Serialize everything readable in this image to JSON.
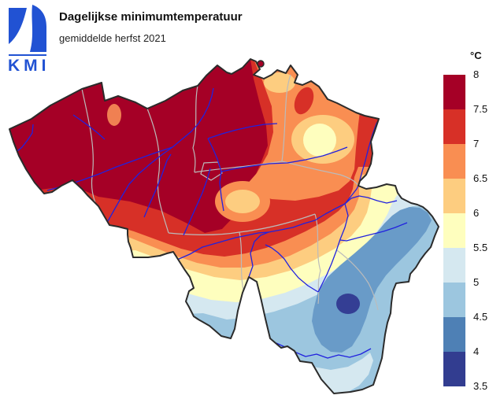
{
  "header": {
    "title": "Dagelijkse minimumtemperatuur",
    "subtitle": "gemiddelde herfst 2021",
    "logo_text": "KMI",
    "logo_color": "#2152D3"
  },
  "legend": {
    "unit_label": "°C",
    "tick_labels": [
      "8",
      "7.5",
      "7",
      "6.5",
      "6",
      "5.5",
      "5",
      "4.5",
      "4",
      "3.5"
    ],
    "stops": [
      "#A50026",
      "#D73027",
      "#F98E52",
      "#FDCD80",
      "#FEFEBE",
      "#D5E8F0",
      "#9CC6DF",
      "#4E80B5",
      "#323D90"
    ]
  },
  "chart_data": {
    "type": "heatmap",
    "title": "Dagelijkse minimumtemperatuur",
    "subtitle": "gemiddelde herfst 2021",
    "region": "Belgium",
    "unit": "°C",
    "scale_min": 3.5,
    "scale_max": 8,
    "scale_interval": 0.5,
    "bands": [
      {
        "range": "7.5–8",
        "color": "#A50026"
      },
      {
        "range": "7–7.5",
        "color": "#D73027"
      },
      {
        "range": "6.5–7",
        "color": "#F98E52"
      },
      {
        "range": "6–6.5",
        "color": "#FDCD80"
      },
      {
        "range": "5.5–6",
        "color": "#FEFEBE"
      },
      {
        "range": "5–5.5",
        "color": "#D5E8F0"
      },
      {
        "range": "4.5–5",
        "color": "#9CC6DF"
      },
      {
        "range": "4–4.5",
        "color": "#4E80B5"
      },
      {
        "range": "3.5–4",
        "color": "#323D90"
      }
    ],
    "spatial_pattern": [
      {
        "area": "northwest and central Flanders",
        "value_range": "7.5–8"
      },
      {
        "area": "central belt and Meuse valley",
        "value_range": "7–7.5"
      },
      {
        "area": "Kempen / Limburg (northeast)",
        "value_range": "6–7 with a 5.5–6 pocket"
      },
      {
        "area": "southern Hainaut belt",
        "value_range": "6–6.5 to 5.5–6"
      },
      {
        "area": "Ardennes (southeast)",
        "value_range": "4–5"
      },
      {
        "area": "eastern high plateau spot",
        "value_range": "3.5–4"
      },
      {
        "area": "southern tip (Gaume)",
        "value_range": "5–5.5"
      }
    ]
  },
  "map": {
    "colors": {
      "country_border": "#2B2B2B",
      "province_border": "#BBBBBB",
      "river": "#2121DE",
      "background": "#FFFFFF"
    }
  }
}
